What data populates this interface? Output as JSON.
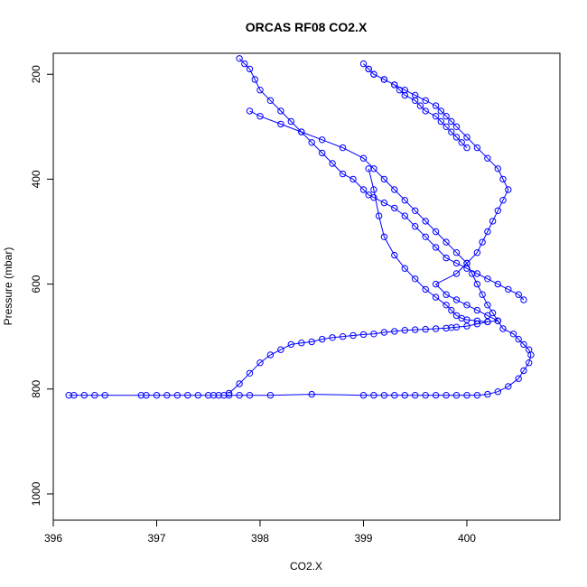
{
  "chart_data": {
    "type": "line",
    "title": "ORCAS RF08 CO2.X",
    "xlabel": "CO2.X",
    "ylabel": "Pressure (mbar)",
    "xlim": [
      396,
      400.9
    ],
    "ylim": [
      1050,
      160
    ],
    "y_axis_inverted": true,
    "x_ticks": [
      396,
      397,
      398,
      399,
      400
    ],
    "y_ticks": [
      200,
      400,
      600,
      800,
      1000
    ],
    "grid": false,
    "legend": "none",
    "marker": "open-circle",
    "line_color": "#0000ff",
    "series": [
      {
        "x": [
          396.15,
          396.2,
          396.3,
          396.4,
          396.5,
          396.85,
          396.9,
          397.0,
          397.1,
          397.2,
          397.3,
          397.4,
          397.5,
          397.55,
          397.6,
          397.65,
          397.7,
          397.8,
          397.9,
          398.1,
          398.5,
          399.0,
          399.1,
          399.2,
          399.3,
          399.4,
          399.5,
          399.6,
          399.7,
          399.8,
          399.9,
          400.0,
          400.1,
          400.2,
          400.3,
          400.4,
          400.5,
          400.55,
          400.6,
          400.62,
          400.6,
          400.55,
          400.5,
          400.45,
          400.35,
          400.3,
          400.2,
          400.1,
          400.0,
          399.9,
          399.8,
          399.7,
          399.9,
          400.0,
          400.1,
          400.15,
          400.2,
          400.25,
          400.3,
          400.35,
          400.4,
          400.35,
          400.3,
          400.2,
          400.1,
          400.0,
          399.9,
          399.85,
          399.8,
          399.75,
          399.7,
          399.6,
          399.5,
          399.4,
          399.3,
          399.2,
          399.1,
          399.05,
          399.0,
          399.05,
          399.1,
          399.2,
          399.3,
          399.35,
          399.4,
          399.5,
          399.55,
          399.6,
          399.7,
          399.75,
          399.8,
          399.85,
          399.9,
          399.95,
          400.0
        ],
        "y": [
          812,
          812,
          812,
          812,
          812,
          812,
          812,
          812,
          812,
          812,
          812,
          812,
          812,
          812,
          812,
          812,
          812,
          812,
          812,
          812,
          810,
          812,
          812,
          812,
          812,
          812,
          812,
          812,
          812,
          812,
          812,
          812,
          812,
          810,
          805,
          795,
          780,
          765,
          750,
          735,
          725,
          715,
          705,
          695,
          685,
          670,
          660,
          650,
          640,
          630,
          620,
          600,
          580,
          560,
          540,
          520,
          500,
          480,
          460,
          440,
          420,
          400,
          380,
          360,
          340,
          320,
          300,
          290,
          280,
          270,
          260,
          250,
          240,
          230,
          220,
          210,
          200,
          190,
          180,
          190,
          200,
          210,
          220,
          230,
          240,
          250,
          260,
          270,
          280,
          290,
          300,
          310,
          320,
          330,
          340
        ]
      },
      {
        "x": [
          397.7,
          397.8,
          397.9,
          398.0,
          398.1,
          398.2,
          398.3,
          398.4,
          398.5,
          398.6,
          398.7,
          398.8,
          398.9,
          399.0,
          399.1,
          399.2,
          399.3,
          399.4,
          399.5,
          399.6,
          399.7,
          399.8,
          399.85,
          399.9,
          400.0,
          400.1,
          400.2,
          400.3
        ],
        "y": [
          808,
          790,
          770,
          750,
          735,
          725,
          715,
          712,
          710,
          705,
          702,
          700,
          698,
          696,
          695,
          692,
          690,
          688,
          687,
          686,
          685,
          684,
          683,
          682,
          680,
          676,
          672,
          670
        ]
      },
      {
        "x": [
          397.8,
          397.85,
          397.9,
          397.95,
          398.0,
          398.1,
          398.2,
          398.3,
          398.4,
          398.5,
          398.6,
          398.7,
          398.8,
          398.9,
          399.0,
          399.05,
          399.1,
          399.2,
          399.3,
          399.4,
          399.5,
          399.6,
          399.7,
          399.8,
          399.9,
          400.0,
          400.1,
          400.2,
          400.3,
          400.4,
          400.5,
          400.55
        ],
        "y": [
          170,
          180,
          190,
          210,
          230,
          250,
          270,
          290,
          310,
          330,
          350,
          370,
          390,
          400,
          420,
          430,
          435,
          445,
          455,
          470,
          490,
          510,
          530,
          550,
          560,
          570,
          580,
          590,
          600,
          610,
          620,
          630
        ]
      },
      {
        "x": [
          397.9,
          398.0,
          398.2,
          398.4,
          398.6,
          398.8,
          399.0,
          399.1,
          399.2,
          399.3,
          399.4,
          399.5,
          399.6,
          399.7,
          399.8,
          399.9,
          400.0,
          400.05,
          400.1,
          400.15,
          400.2,
          400.25,
          400.3
        ],
        "y": [
          270,
          280,
          295,
          310,
          325,
          340,
          360,
          380,
          400,
          420,
          440,
          460,
          480,
          500,
          520,
          540,
          560,
          580,
          600,
          620,
          640,
          655,
          670
        ]
      },
      {
        "x": [
          399.05,
          399.1,
          399.15,
          399.2,
          399.3,
          399.4,
          399.5,
          399.6,
          399.7,
          399.8,
          399.85,
          399.9,
          399.95,
          400.0,
          400.1,
          400.2
        ],
        "y": [
          380,
          420,
          470,
          510,
          545,
          570,
          590,
          610,
          625,
          640,
          650,
          660,
          665,
          668,
          670,
          672
        ]
      }
    ]
  }
}
